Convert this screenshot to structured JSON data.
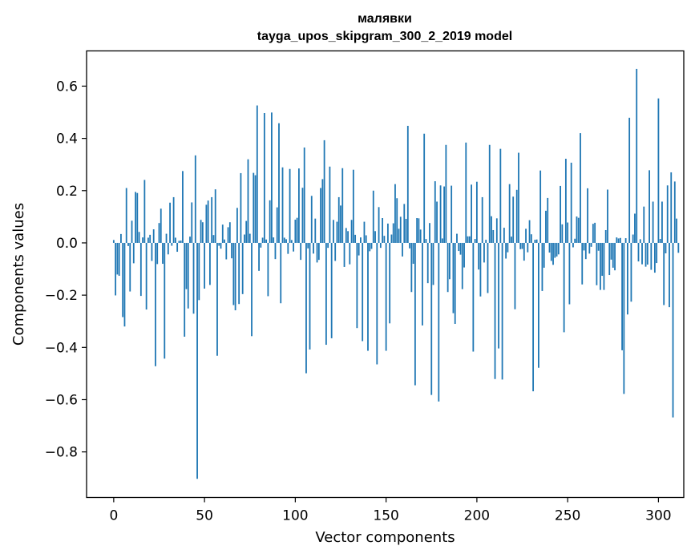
{
  "chart_data": {
    "type": "bar",
    "title": "малявки",
    "subtitle": "tayga_upos_skipgram_300_2_2019 model",
    "xlabel": "Vector components",
    "ylabel": "Components values",
    "xlim": [
      -14.95,
      313.95
    ],
    "ylim": [
      -0.9744,
      0.7348
    ],
    "xticks": [
      0,
      50,
      100,
      150,
      200,
      250,
      300
    ],
    "xtick_labels": [
      "0",
      "50",
      "100",
      "150",
      "200",
      "250",
      "300"
    ],
    "yticks": [
      -0.8,
      -0.6,
      -0.4,
      -0.2,
      0.0,
      0.2,
      0.4,
      0.6
    ],
    "ytick_labels": [
      "−0.8",
      "−0.6",
      "−0.4",
      "−0.2",
      "0.0",
      "0.2",
      "0.4",
      "0.6"
    ],
    "bar_color": "#1f77b4",
    "values": [
      0.011,
      -0.201,
      -0.121,
      -0.126,
      0.034,
      -0.284,
      -0.32,
      0.21,
      -0.012,
      -0.186,
      0.085,
      -0.078,
      0.195,
      0.191,
      0.042,
      -0.203,
      0.021,
      0.241,
      -0.255,
      0.02,
      0.031,
      -0.069,
      0.052,
      -0.472,
      -0.081,
      0.076,
      0.131,
      -0.08,
      -0.443,
      0.035,
      -0.044,
      0.154,
      -0.011,
      0.175,
      0.02,
      -0.034,
      0.008,
      0.009,
      0.275,
      -0.359,
      -0.177,
      -0.251,
      0.024,
      0.155,
      -0.271,
      0.335,
      -0.903,
      -0.219,
      0.088,
      0.079,
      -0.175,
      0.146,
      0.162,
      -0.161,
      0.175,
      0.03,
      0.205,
      -0.432,
      -0.011,
      -0.022,
      0.07,
      0.013,
      -0.063,
      0.06,
      0.079,
      -0.059,
      -0.238,
      -0.258,
      0.134,
      -0.234,
      0.267,
      -0.196,
      0.032,
      0.084,
      0.32,
      0.035,
      -0.357,
      0.268,
      0.259,
      0.526,
      -0.107,
      -0.018,
      0.02,
      0.497,
      0.013,
      -0.204,
      0.163,
      0.499,
      0.021,
      -0.062,
      0.136,
      0.458,
      -0.231,
      0.289,
      0.02,
      0.014,
      -0.042,
      0.283,
      0.011,
      -0.033,
      0.089,
      0.096,
      0.285,
      -0.065,
      0.211,
      0.365,
      -0.499,
      -0.021,
      -0.408,
      0.18,
      -0.041,
      0.093,
      -0.075,
      -0.065,
      0.21,
      0.244,
      0.393,
      -0.39,
      -0.019,
      0.292,
      -0.365,
      0.088,
      -0.069,
      0.081,
      0.175,
      0.143,
      0.286,
      -0.092,
      0.057,
      0.045,
      -0.082,
      0.088,
      0.28,
      0.031,
      -0.326,
      -0.048,
      0.021,
      -0.376,
      0.081,
      0.029,
      -0.413,
      -0.032,
      -0.023,
      0.2,
      0.045,
      -0.465,
      0.137,
      -0.019,
      0.095,
      0.027,
      -0.413,
      0.074,
      -0.308,
      0.032,
      0.075,
      0.225,
      0.171,
      0.054,
      0.1,
      -0.052,
      0.149,
      0.092,
      0.448,
      -0.021,
      -0.188,
      -0.08,
      -0.545,
      0.095,
      0.094,
      0.051,
      -0.316,
      0.418,
      0.015,
      -0.154,
      0.076,
      -0.582,
      -0.161,
      0.236,
      0.158,
      -0.607,
      0.22,
      0.017,
      0.216,
      0.375,
      -0.188,
      -0.139,
      0.219,
      -0.269,
      -0.31,
      0.035,
      -0.031,
      -0.045,
      -0.177,
      -0.094,
      0.384,
      0.025,
      0.025,
      0.223,
      -0.416,
      0.015,
      0.234,
      -0.102,
      -0.205,
      0.175,
      -0.075,
      0.012,
      -0.192,
      0.375,
      0.102,
      0.049,
      -0.521,
      0.094,
      -0.404,
      0.36,
      -0.523,
      0.058,
      -0.06,
      -0.036,
      0.225,
      0.024,
      0.177,
      -0.254,
      0.203,
      0.345,
      -0.024,
      -0.023,
      -0.068,
      0.054,
      -0.036,
      0.087,
      0.033,
      -0.568,
      0.012,
      0.013,
      -0.478,
      0.277,
      -0.184,
      -0.095,
      0.123,
      0.172,
      -0.037,
      -0.069,
      -0.084,
      -0.057,
      -0.052,
      -0.044,
      0.218,
      0.071,
      -0.342,
      0.322,
      0.078,
      -0.235,
      0.307,
      -0.017,
      0.016,
      0.101,
      0.096,
      0.42,
      -0.159,
      -0.029,
      -0.062,
      0.209,
      -0.041,
      -0.015,
      0.073,
      0.077,
      -0.162,
      -0.03,
      -0.18,
      -0.126,
      -0.18,
      0.049,
      0.204,
      -0.123,
      -0.064,
      -0.095,
      -0.105,
      0.021,
      0.017,
      0.019,
      -0.411,
      -0.578,
      0.018,
      -0.274,
      0.479,
      -0.225,
      0.032,
      0.112,
      0.666,
      -0.071,
      0.014,
      -0.082,
      0.139,
      -0.091,
      -0.083,
      0.278,
      -0.103,
      0.158,
      -0.114,
      -0.077,
      0.553,
      0.015,
      0.158,
      -0.238,
      -0.04,
      0.22,
      -0.246,
      0.27,
      -0.668,
      0.235,
      0.093,
      -0.038
    ]
  }
}
